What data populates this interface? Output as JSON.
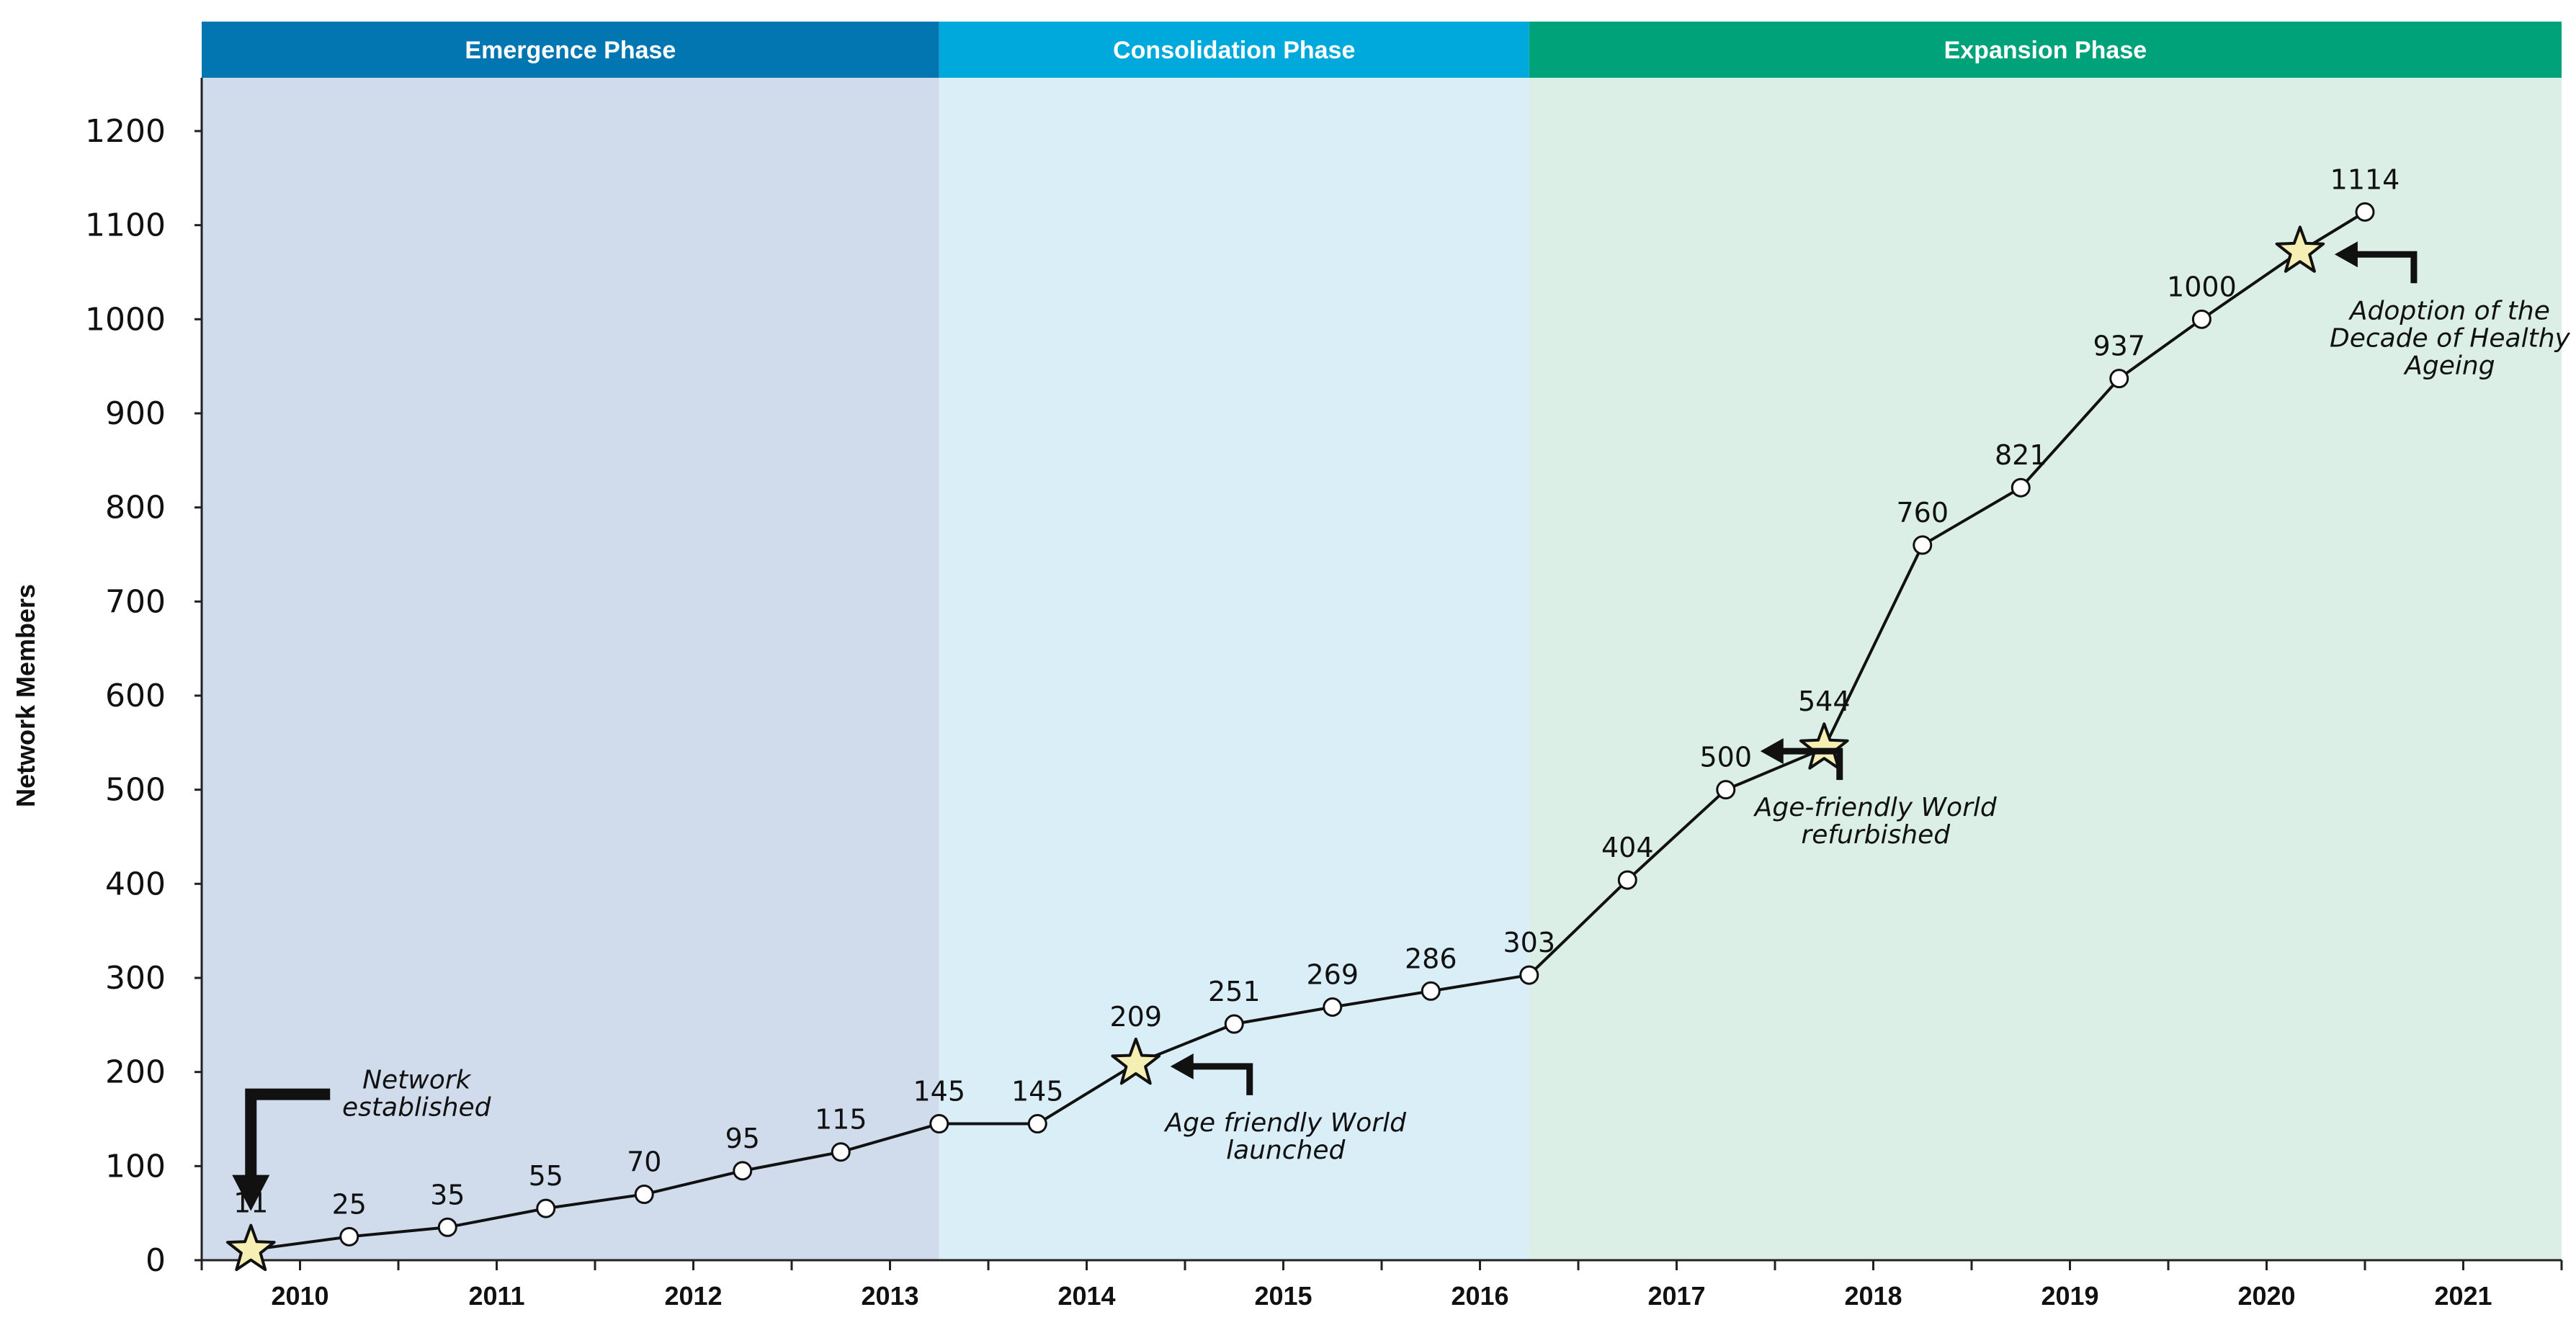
{
  "chart_data": {
    "type": "line",
    "title": "",
    "xlabel": "",
    "ylabel": "Network Members",
    "ylim": [
      0,
      1200
    ],
    "yticks": [
      0,
      100,
      200,
      300,
      400,
      500,
      600,
      700,
      800,
      900,
      1000,
      1100,
      1200
    ],
    "xlim": [
      2010,
      2022
    ],
    "xtick_labels": [
      "2010",
      "2011",
      "2012",
      "2013",
      "2014",
      "2015",
      "2016",
      "2017",
      "2018",
      "2019",
      "2020",
      "2021"
    ],
    "phases": [
      {
        "label": "Emergence Phase",
        "start": 2010,
        "end": 2013.75,
        "band_color": "#0276b0",
        "bg_color": "#d0dcec"
      },
      {
        "label": "Consolidation Phase",
        "start": 2013.75,
        "end": 2016.75,
        "band_color": "#00a9dc",
        "bg_color": "#daeef7"
      },
      {
        "label": "Expansion Phase",
        "start": 2016.75,
        "end": 2022,
        "band_color": "#00a27a",
        "bg_color": "#dcefe6"
      }
    ],
    "series": [
      {
        "name": "Network Members",
        "x": [
          2010.25,
          2010.75,
          2011.25,
          2011.75,
          2012.25,
          2012.75,
          2013.25,
          2013.75,
          2014.25,
          2014.75,
          2015.25,
          2015.75,
          2016.25,
          2016.75,
          2017.25,
          2017.75,
          2018.25,
          2018.75,
          2019.25,
          2019.75,
          2020.17,
          2020.67,
          2021.0
        ],
        "y": [
          11,
          25,
          35,
          55,
          70,
          95,
          115,
          145,
          145,
          209,
          251,
          269,
          286,
          303,
          404,
          500,
          544,
          760,
          821,
          937,
          1000,
          1072,
          1114
        ],
        "labels": [
          "11",
          "25",
          "35",
          "55",
          "70",
          "95",
          "115",
          "145",
          "145",
          "209",
          "251",
          "269",
          "286",
          "303",
          "404",
          "500",
          "544",
          "760",
          "821",
          "937",
          "1000",
          "",
          "1114"
        ],
        "marker": [
          "star",
          "circle",
          "circle",
          "circle",
          "circle",
          "circle",
          "circle",
          "circle",
          "circle",
          "star",
          "circle",
          "circle",
          "circle",
          "circle",
          "circle",
          "circle",
          "star",
          "circle",
          "circle",
          "circle",
          "circle",
          "star",
          "circle"
        ]
      }
    ],
    "annotations": [
      {
        "lines": [
          "Network",
          "established"
        ],
        "x": 2010.25,
        "y": 11,
        "arrow": "down"
      },
      {
        "lines": [
          "Age friendly World",
          "launched"
        ],
        "x": 2014.75,
        "y": 209,
        "arrow": "left"
      },
      {
        "lines": [
          "Age-friendly World",
          "refurbished"
        ],
        "x": 2017.75,
        "y": 544,
        "arrow": "left"
      },
      {
        "lines": [
          "Adoption of the",
          "Decade of Healthy",
          "Ageing"
        ],
        "x": 2020.67,
        "y": 1072,
        "arrow": "left"
      }
    ],
    "colors": {
      "line": "#111111",
      "marker_fill": "#ffffff",
      "star_fill": "#f6efb4",
      "axis": "#222222"
    }
  }
}
